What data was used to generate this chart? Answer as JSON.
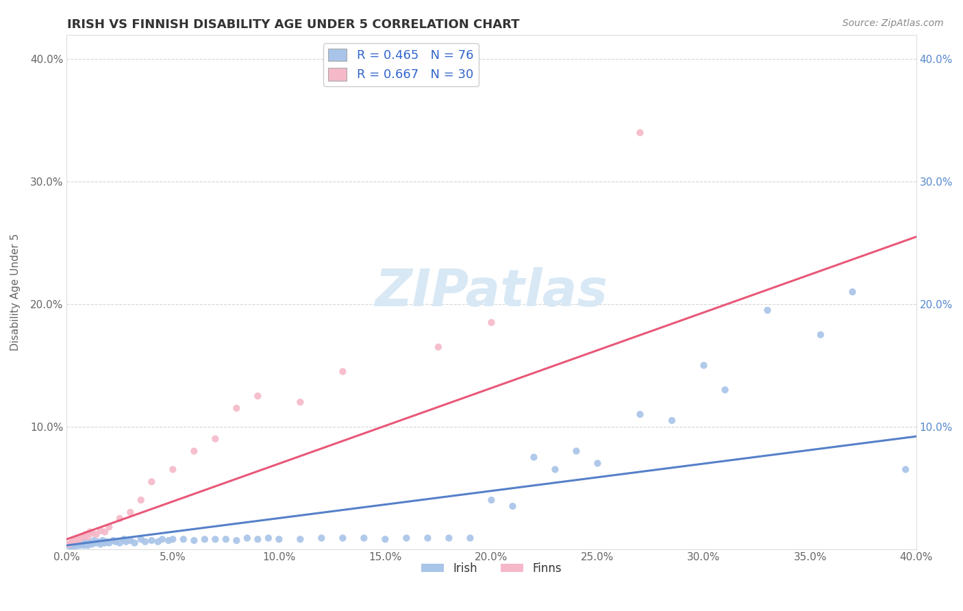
{
  "title": "IRISH VS FINNISH DISABILITY AGE UNDER 5 CORRELATION CHART",
  "source": "Source: ZipAtlas.com",
  "ylabel": "Disability Age Under 5",
  "xlim": [
    0.0,
    0.4
  ],
  "ylim": [
    0.0,
    0.42
  ],
  "xticks": [
    0.0,
    0.05,
    0.1,
    0.15,
    0.2,
    0.25,
    0.3,
    0.35,
    0.4
  ],
  "yticks": [
    0.0,
    0.1,
    0.2,
    0.3,
    0.4
  ],
  "left_ytick_labels": [
    "",
    "10.0%",
    "20.0%",
    "30.0%",
    "40.0%"
  ],
  "right_ytick_labels": [
    "",
    "10.0%",
    "20.0%",
    "30.0%",
    "40.0%"
  ],
  "xtick_labels": [
    "0.0%",
    "5.0%",
    "10.0%",
    "15.0%",
    "20.0%",
    "25.0%",
    "30.0%",
    "35.0%",
    "40.0%"
  ],
  "irish_color": "#a8c4e8",
  "finns_color": "#f5b8c8",
  "irish_line_color": "#5580c8",
  "finns_line_color": "#e85878",
  "title_color": "#333333",
  "grid_color": "#cccccc",
  "legend_r_color": "#3366cc",
  "irish_R": 0.465,
  "irish_N": 76,
  "finns_R": 0.667,
  "finns_N": 30,
  "watermark_color": "#d8e8f5",
  "irish_trend_x0": 0.0,
  "irish_trend_y0": 0.003,
  "irish_trend_x1": 0.4,
  "irish_trend_y1": 0.092,
  "finns_trend_x0": 0.0,
  "finns_trend_y0": 0.008,
  "finns_trend_x1": 0.4,
  "finns_trend_y1": 0.255,
  "irish_x": [
    0.001,
    0.002,
    0.002,
    0.003,
    0.003,
    0.004,
    0.004,
    0.005,
    0.005,
    0.006,
    0.006,
    0.007,
    0.007,
    0.008,
    0.008,
    0.009,
    0.009,
    0.01,
    0.01,
    0.011,
    0.012,
    0.013,
    0.014,
    0.015,
    0.016,
    0.017,
    0.018,
    0.019,
    0.02,
    0.022,
    0.023,
    0.025,
    0.027,
    0.028,
    0.03,
    0.032,
    0.035,
    0.037,
    0.04,
    0.043,
    0.045,
    0.048,
    0.05,
    0.055,
    0.06,
    0.065,
    0.07,
    0.075,
    0.08,
    0.085,
    0.09,
    0.095,
    0.1,
    0.11,
    0.12,
    0.13,
    0.14,
    0.15,
    0.16,
    0.17,
    0.18,
    0.19,
    0.2,
    0.21,
    0.22,
    0.23,
    0.24,
    0.25,
    0.27,
    0.285,
    0.3,
    0.31,
    0.33,
    0.355,
    0.37,
    0.395
  ],
  "irish_y": [
    0.003,
    0.004,
    0.002,
    0.005,
    0.003,
    0.006,
    0.002,
    0.004,
    0.007,
    0.003,
    0.005,
    0.004,
    0.006,
    0.003,
    0.007,
    0.004,
    0.005,
    0.003,
    0.006,
    0.005,
    0.004,
    0.007,
    0.005,
    0.006,
    0.004,
    0.007,
    0.005,
    0.006,
    0.005,
    0.007,
    0.006,
    0.005,
    0.008,
    0.006,
    0.007,
    0.005,
    0.008,
    0.006,
    0.007,
    0.006,
    0.008,
    0.007,
    0.008,
    0.008,
    0.007,
    0.008,
    0.008,
    0.008,
    0.007,
    0.009,
    0.008,
    0.009,
    0.008,
    0.008,
    0.009,
    0.009,
    0.009,
    0.008,
    0.009,
    0.009,
    0.009,
    0.009,
    0.04,
    0.035,
    0.075,
    0.065,
    0.08,
    0.07,
    0.11,
    0.105,
    0.15,
    0.13,
    0.195,
    0.175,
    0.21,
    0.065
  ],
  "finns_x": [
    0.001,
    0.002,
    0.003,
    0.004,
    0.005,
    0.006,
    0.007,
    0.008,
    0.009,
    0.01,
    0.011,
    0.012,
    0.014,
    0.016,
    0.018,
    0.02,
    0.025,
    0.03,
    0.035,
    0.04,
    0.05,
    0.06,
    0.07,
    0.08,
    0.09,
    0.11,
    0.13,
    0.175,
    0.2,
    0.27
  ],
  "finns_y": [
    0.004,
    0.005,
    0.006,
    0.007,
    0.008,
    0.008,
    0.01,
    0.01,
    0.012,
    0.01,
    0.014,
    0.013,
    0.012,
    0.015,
    0.014,
    0.018,
    0.025,
    0.03,
    0.04,
    0.055,
    0.065,
    0.08,
    0.09,
    0.115,
    0.125,
    0.12,
    0.145,
    0.165,
    0.185,
    0.34
  ]
}
